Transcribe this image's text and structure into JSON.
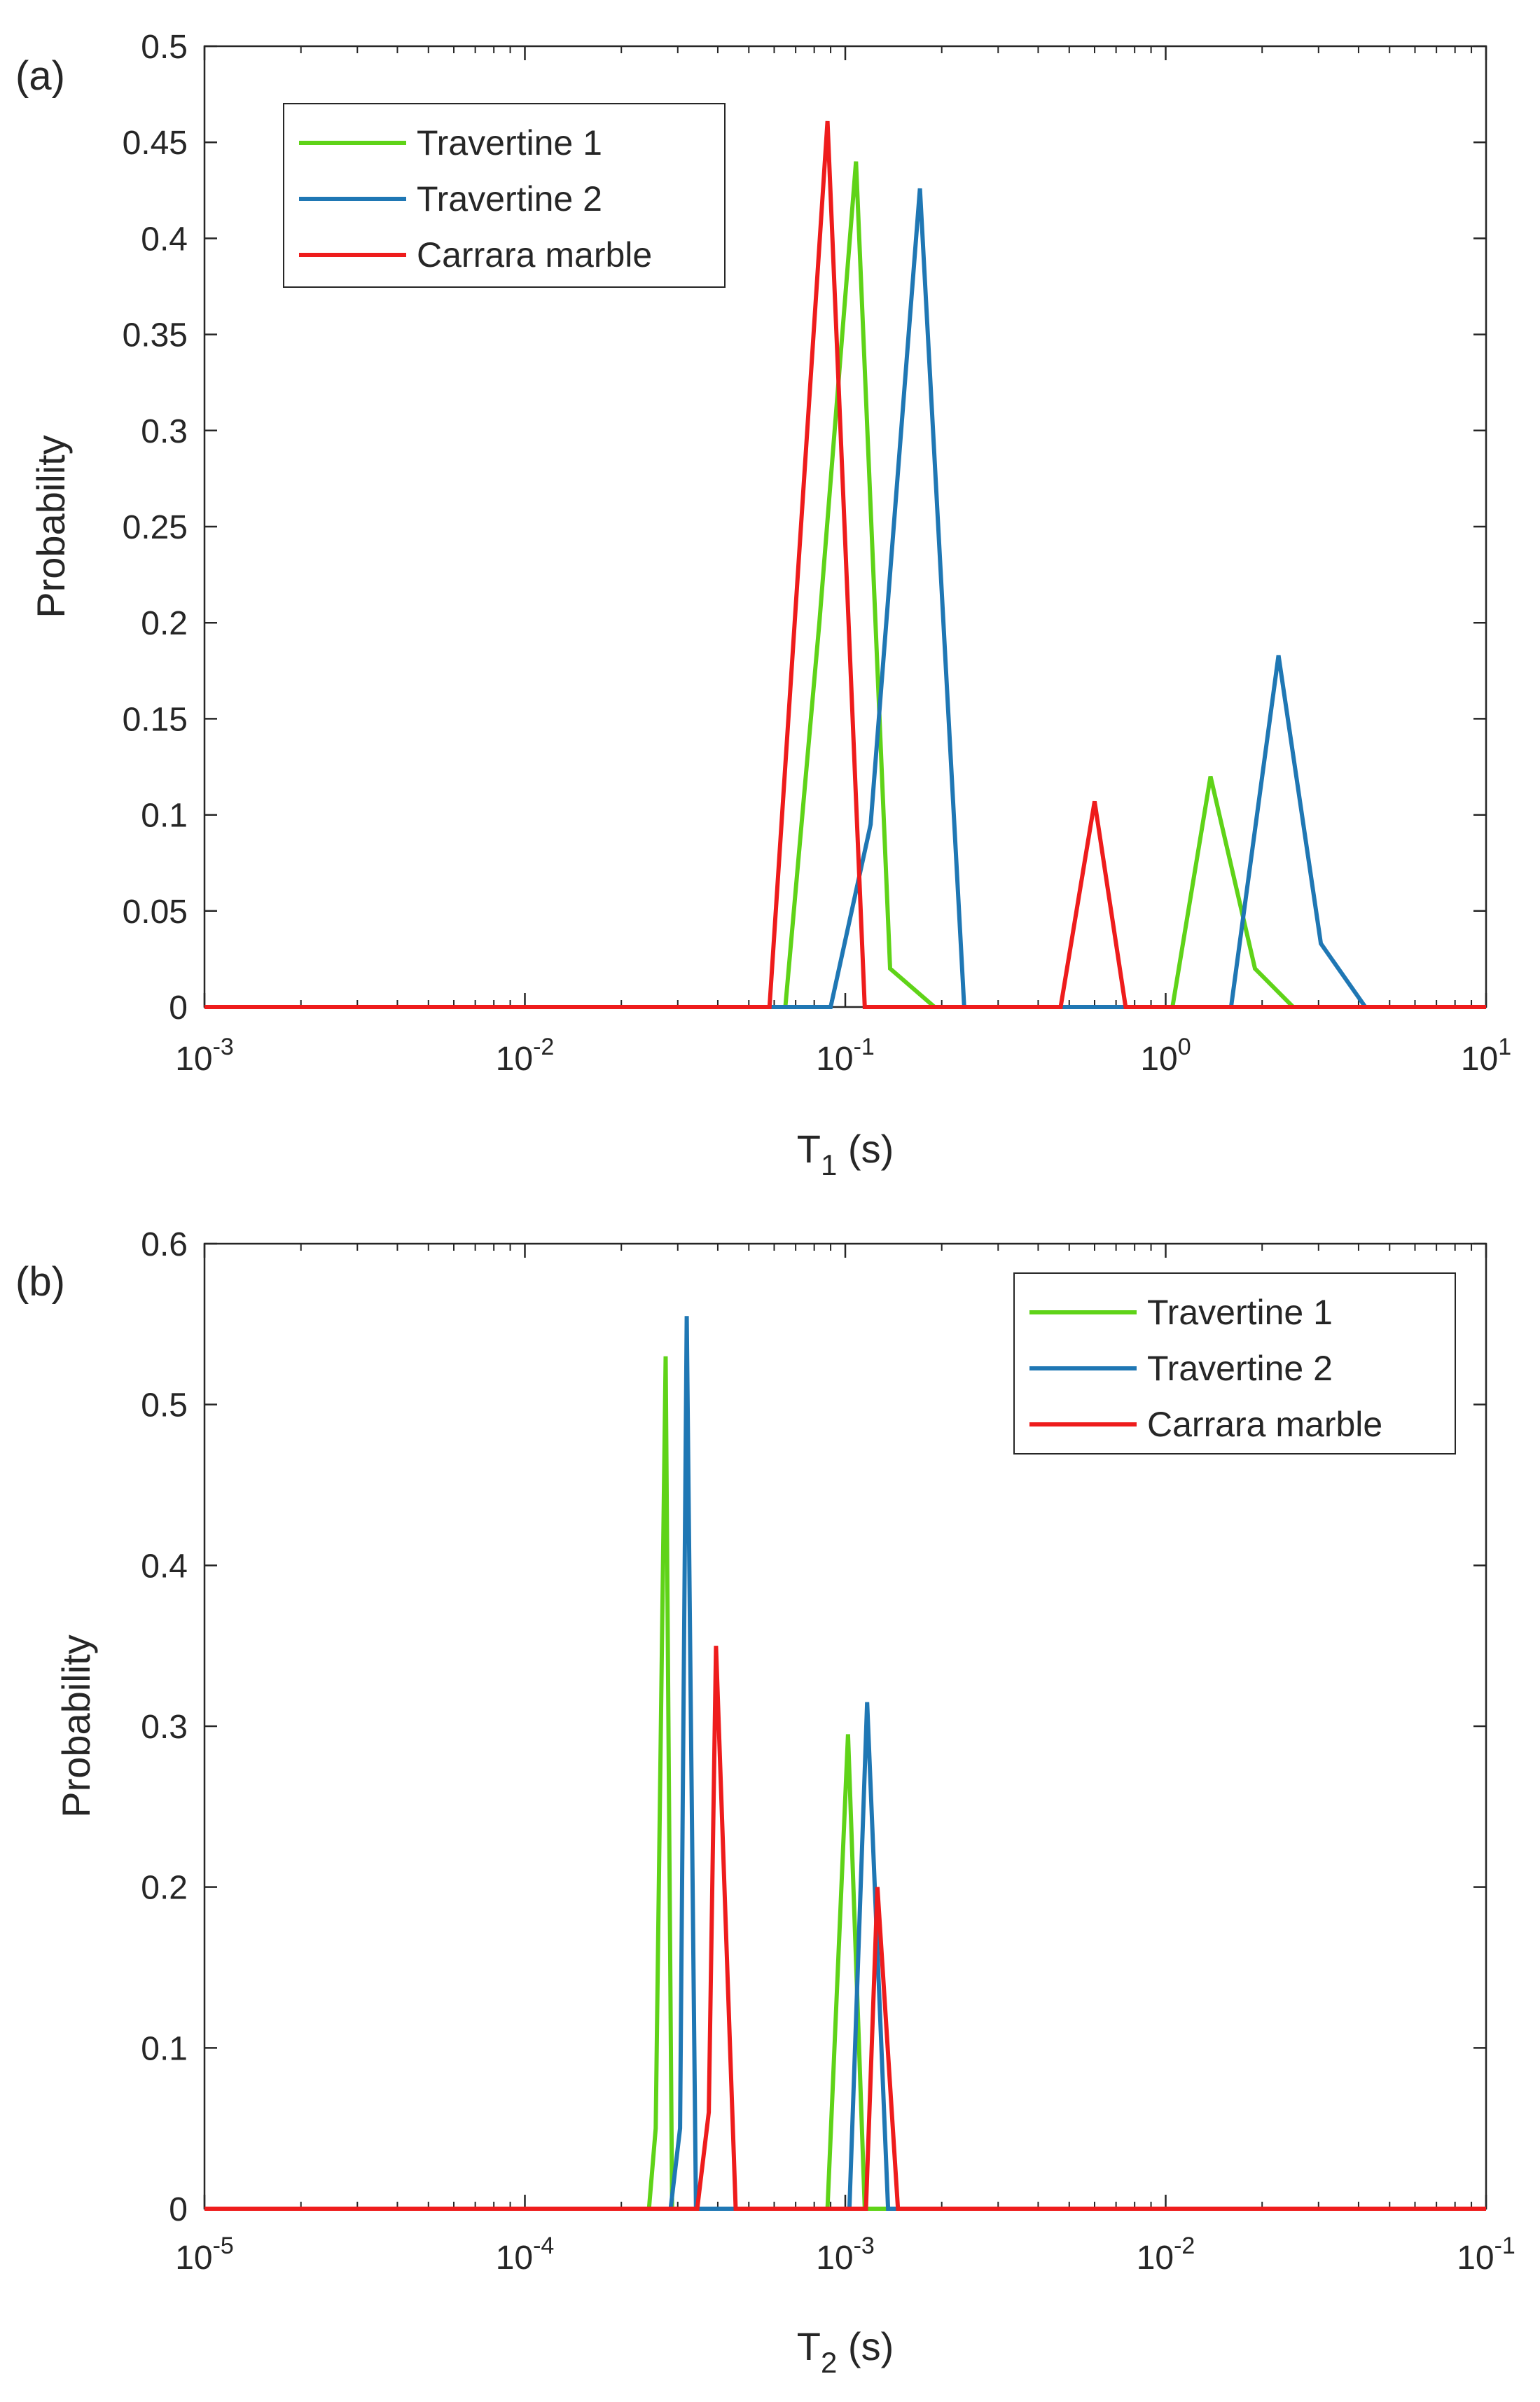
{
  "chart_data": [
    {
      "type": "line",
      "panel_label": "(a)",
      "xscale": "log",
      "xlim": [
        0.001,
        10
      ],
      "ylim": [
        0,
        0.5
      ],
      "xlabel": "T",
      "xlabel_sub": "1",
      "xlabel_unit": "(s)",
      "ylabel": "Probability",
      "xticks": [
        {
          "value": 0.001,
          "base": "10",
          "exp": "-3"
        },
        {
          "value": 0.01,
          "base": "10",
          "exp": "-2"
        },
        {
          "value": 0.1,
          "base": "10",
          "exp": "-1"
        },
        {
          "value": 1,
          "base": "10",
          "exp": "0"
        },
        {
          "value": 10,
          "base": "10",
          "exp": "1"
        }
      ],
      "yticks": [
        {
          "value": 0,
          "label": "0"
        },
        {
          "value": 0.05,
          "label": "0.05"
        },
        {
          "value": 0.1,
          "label": "0.1"
        },
        {
          "value": 0.15,
          "label": "0.15"
        },
        {
          "value": 0.2,
          "label": "0.2"
        },
        {
          "value": 0.25,
          "label": "0.25"
        },
        {
          "value": 0.3,
          "label": "0.3"
        },
        {
          "value": 0.35,
          "label": "0.35"
        },
        {
          "value": 0.4,
          "label": "0.4"
        },
        {
          "value": 0.45,
          "label": "0.45"
        },
        {
          "value": 0.5,
          "label": "0.5"
        }
      ],
      "legend_position": "top-left",
      "series": [
        {
          "name": "Travertine 1",
          "color": "#5fd318",
          "x": [
            0.001,
            0.065,
            0.083,
            0.108,
            0.138,
            0.19,
            1.05,
            1.38,
            1.9,
            2.5,
            10
          ],
          "y": [
            0,
            0,
            0.2,
            0.44,
            0.02,
            0,
            0,
            0.12,
            0.02,
            0,
            0
          ]
        },
        {
          "name": "Travertine 2",
          "color": "#1f77b4",
          "x": [
            0.001,
            0.09,
            0.12,
            0.171,
            0.235,
            1.6,
            2.25,
            3.05,
            4.2,
            10
          ],
          "y": [
            0,
            0,
            0.095,
            0.426,
            0,
            0,
            0.183,
            0.033,
            0,
            0
          ]
        },
        {
          "name": "Carrara marble",
          "color": "#ee1c1c",
          "x": [
            0.001,
            0.058,
            0.088,
            0.115,
            0.47,
            0.6,
            0.75,
            10
          ],
          "y": [
            0,
            0,
            0.461,
            0,
            0,
            0.107,
            0,
            0
          ]
        }
      ]
    },
    {
      "type": "line",
      "panel_label": "(b)",
      "xscale": "log",
      "xlim": [
        1e-05,
        0.1
      ],
      "ylim": [
        0,
        0.6
      ],
      "xlabel": "T",
      "xlabel_sub": "2",
      "xlabel_unit": "(s)",
      "ylabel": "Probability",
      "xticks": [
        {
          "value": 1e-05,
          "base": "10",
          "exp": "-5"
        },
        {
          "value": 0.0001,
          "base": "10",
          "exp": "-4"
        },
        {
          "value": 0.001,
          "base": "10",
          "exp": "-3"
        },
        {
          "value": 0.01,
          "base": "10",
          "exp": "-2"
        },
        {
          "value": 0.1,
          "base": "10",
          "exp": "-1"
        }
      ],
      "yticks": [
        {
          "value": 0,
          "label": "0"
        },
        {
          "value": 0.1,
          "label": "0.1"
        },
        {
          "value": 0.2,
          "label": "0.2"
        },
        {
          "value": 0.3,
          "label": "0.3"
        },
        {
          "value": 0.4,
          "label": "0.4"
        },
        {
          "value": 0.5,
          "label": "0.5"
        },
        {
          "value": 0.6,
          "label": "0.6"
        }
      ],
      "legend_position": "top-right",
      "series": [
        {
          "name": "Travertine 1",
          "color": "#5fd318",
          "x": [
            1e-05,
            0.000244,
            0.000256,
            0.000275,
            0.000288,
            0.00088,
            0.00102,
            0.00115,
            0.1
          ],
          "y": [
            0,
            0,
            0.05,
            0.53,
            0,
            0,
            0.295,
            0,
            0
          ]
        },
        {
          "name": "Travertine 2",
          "color": "#1f77b4",
          "x": [
            1e-05,
            0.000285,
            0.000305,
            0.00032,
            0.000342,
            0.00103,
            0.00117,
            0.00136,
            0.1
          ],
          "y": [
            0,
            0,
            0.05,
            0.555,
            0,
            0,
            0.315,
            0,
            0
          ]
        },
        {
          "name": "Carrara marble",
          "color": "#ee1c1c",
          "x": [
            1e-05,
            0.000345,
            0.000375,
            0.000395,
            0.000455,
            0.00116,
            0.00126,
            0.00146,
            0.1
          ],
          "y": [
            0,
            0,
            0.06,
            0.35,
            0,
            0,
            0.2,
            0,
            0
          ]
        }
      ]
    }
  ]
}
